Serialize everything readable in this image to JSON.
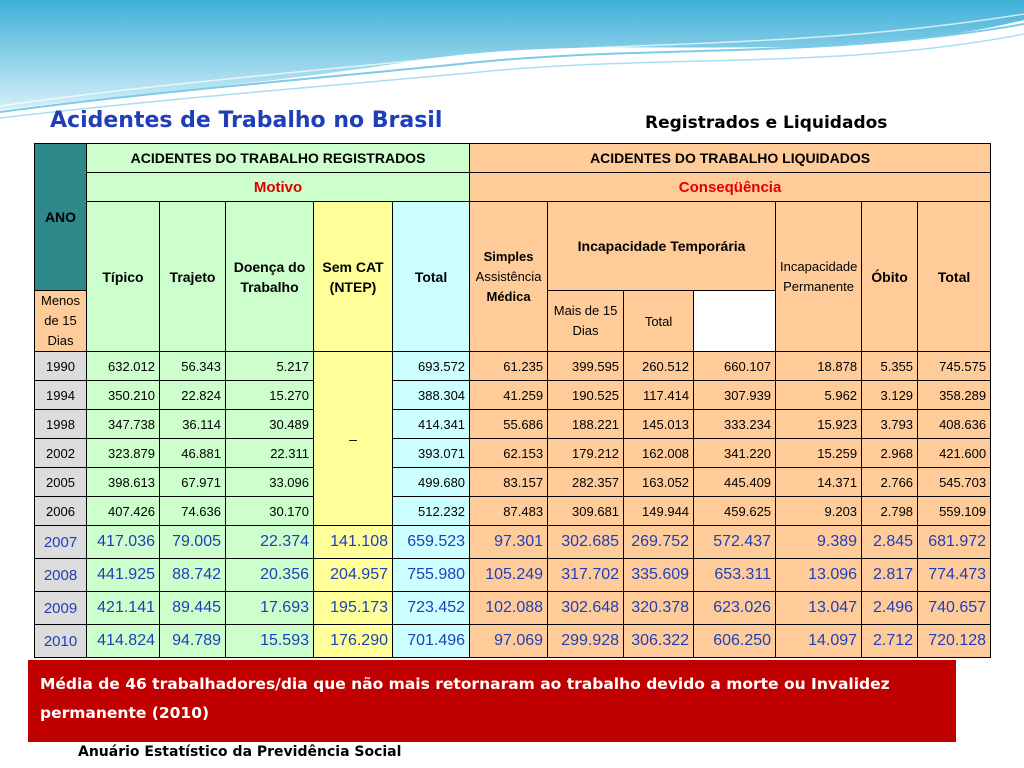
{
  "slide": {
    "title": "Acidentes de Trabalho no Brasil",
    "subtitle": "Registrados e Liquidados",
    "note": "Média de 46 trabalhadores/dia que não mais retornaram ao trabalho devido a morte ou Invalidez permanente (2010)",
    "source": "Anuário Estatístico da Previdência Social"
  },
  "table": {
    "ano_label": "ANO",
    "registrados_label": "ACIDENTES DO TRABALHO REGISTRADOS",
    "liquidados_label": "ACIDENTES DO TRABALHO LIQUIDADOS",
    "motivo_label": "Motivo",
    "consequencia_label": "Conseqüência",
    "col_tipico": "Típico",
    "col_trajeto": "Trajeto",
    "col_doenca": "Doença do Trabalho",
    "col_semcat": "Sem CAT (NTEP)",
    "col_total_reg": "Total",
    "col_simples_1": "Simples",
    "col_simples_2": "Assistência",
    "col_simples_3": "Médica",
    "col_incap_temp": "Incapacidade Temporária",
    "col_menos15": "Menos de 15 Dias",
    "col_mais15": "Mais de 15 Dias",
    "col_total_temp": "Total",
    "col_incap_perm": "Incapacidade Permanente",
    "col_obito": "Óbito",
    "col_total_liq": "Total",
    "dash": "–",
    "rows_early": [
      [
        "1990",
        "632.012",
        "56.343",
        "5.217",
        "693.572",
        "61.235",
        "399.595",
        "260.512",
        "660.107",
        "18.878",
        "5.355",
        "745.575"
      ],
      [
        "1994",
        "350.210",
        "22.824",
        "15.270",
        "388.304",
        "41.259",
        "190.525",
        "117.414",
        "307.939",
        "5.962",
        "3.129",
        "358.289"
      ],
      [
        "1998",
        "347.738",
        "36.114",
        "30.489",
        "414.341",
        "55.686",
        "188.221",
        "145.013",
        "333.234",
        "15.923",
        "3.793",
        "408.636"
      ],
      [
        "2002",
        "323.879",
        "46.881",
        "22.311",
        "393.071",
        "62.153",
        "179.212",
        "162.008",
        "341.220",
        "15.259",
        "2.968",
        "421.600"
      ],
      [
        "2005",
        "398.613",
        "67.971",
        "33.096",
        "499.680",
        "83.157",
        "282.357",
        "163.052",
        "445.409",
        "14.371",
        "2.766",
        "545.703"
      ],
      [
        "2006",
        "407.426",
        "74.636",
        "30.170",
        "512.232",
        "87.483",
        "309.681",
        "149.944",
        "459.625",
        "9.203",
        "2.798",
        "559.109"
      ]
    ],
    "rows_late": [
      [
        "2007",
        "417.036",
        "79.005",
        "22.374",
        "141.108",
        "659.523",
        "97.301",
        "302.685",
        "269.752",
        "572.437",
        "9.389",
        "2.845",
        "681.972"
      ],
      [
        "2008",
        "441.925",
        "88.742",
        "20.356",
        "204.957",
        "755.980",
        "105.249",
        "317.702",
        "335.609",
        "653.311",
        "13.096",
        "2.817",
        "774.473"
      ],
      [
        "2009",
        "421.141",
        "89.445",
        "17.693",
        "195.173",
        "723.452",
        "102.088",
        "302.648",
        "320.378",
        "623.026",
        "13.047",
        "2.496",
        "740.657"
      ],
      [
        "2010",
        "414.824",
        "94.789",
        "15.593",
        "176.290",
        "701.496",
        "97.069",
        "299.928",
        "306.322",
        "606.250",
        "14.097",
        "2.712",
        "720.128"
      ]
    ]
  }
}
